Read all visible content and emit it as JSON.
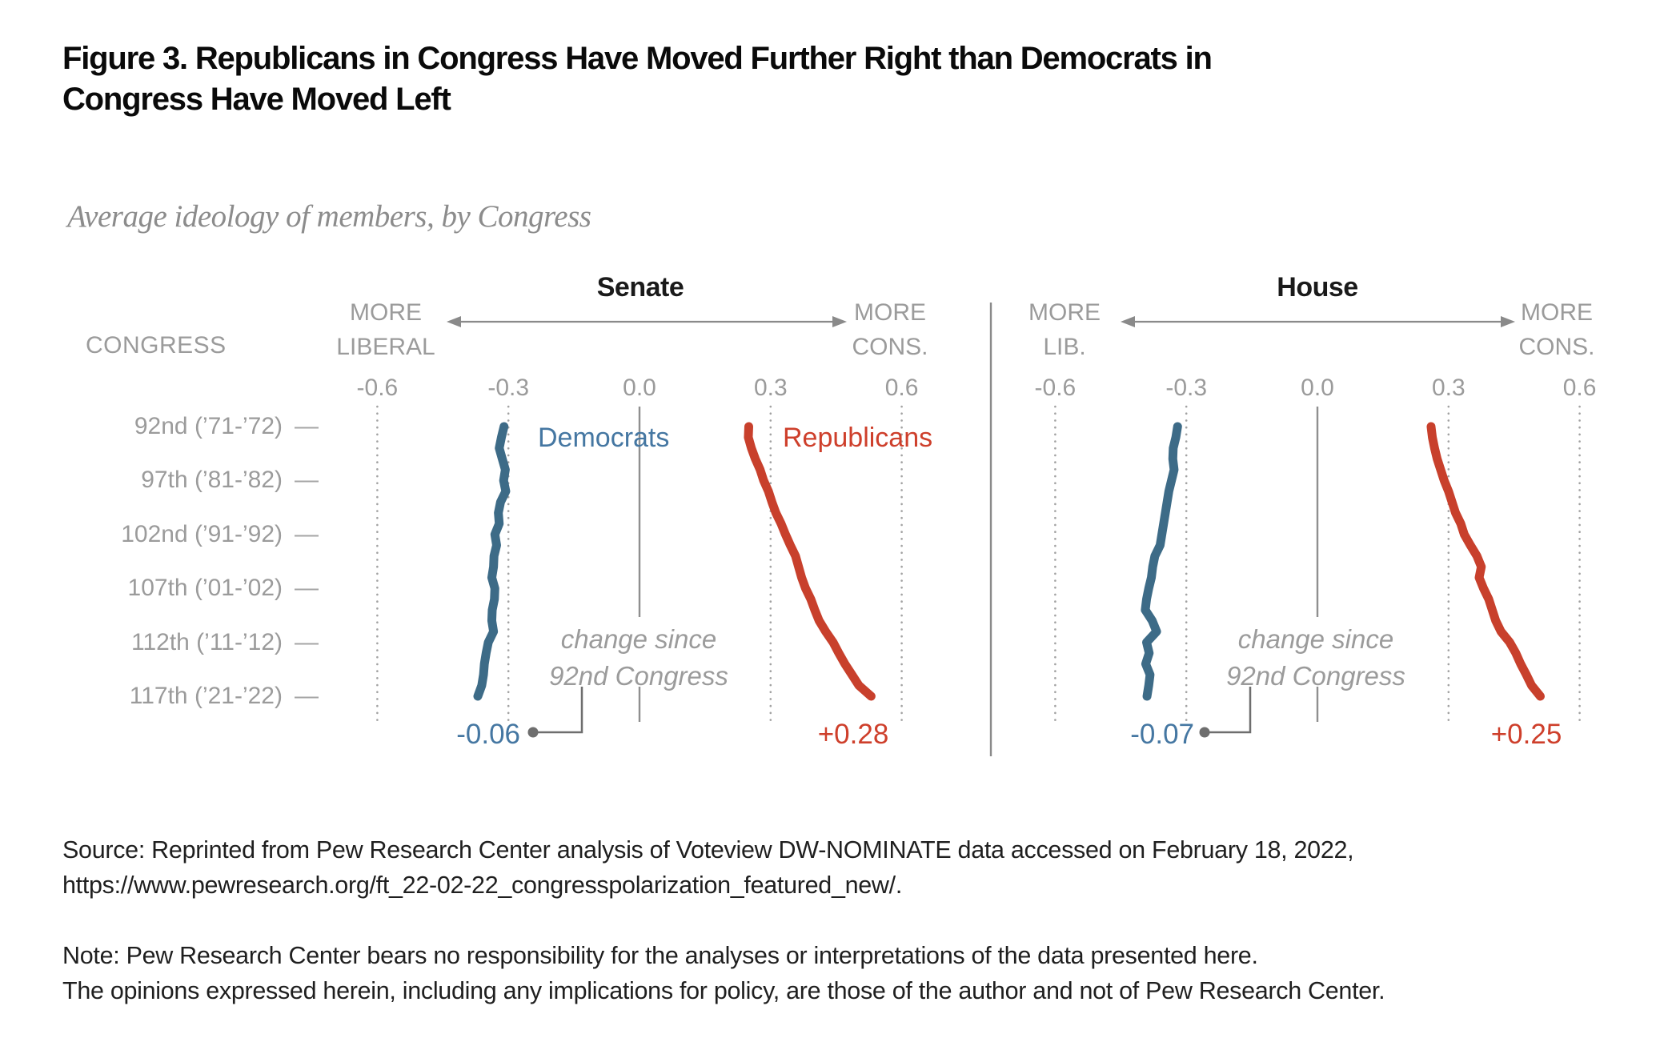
{
  "figure": {
    "title": "Figure 3. Republicans in Congress Have Moved Further Right than Democrats in Congress Have Moved Left",
    "subtitle": "Average ideology of members, by Congress"
  },
  "category_axis": {
    "header": "CONGRESS",
    "ticks": [
      {
        "congress": 92,
        "label": "92nd (’71-’72)"
      },
      {
        "congress": 97,
        "label": "97th (’81-’82)"
      },
      {
        "congress": 102,
        "label": "102nd (’91-’92)"
      },
      {
        "congress": 107,
        "label": "107th (’01-’02)"
      },
      {
        "congress": 112,
        "label": "112th (’11-’12)"
      },
      {
        "congress": 117,
        "label": "117th (’21-’22)"
      }
    ]
  },
  "chart_data": [
    {
      "type": "line",
      "title": "Senate",
      "orientation": "value-on-x-congress-on-y",
      "value_axis": {
        "range": [
          -0.6,
          0.6
        ],
        "ticks": [
          "-0.6",
          "-0.3",
          "0.0",
          "0.3",
          "0.6"
        ],
        "left_label_lines": [
          "MORE",
          "LIBERAL"
        ],
        "right_label_lines": [
          "MORE",
          "CONS."
        ]
      },
      "categories": [
        92,
        93,
        94,
        95,
        96,
        97,
        98,
        99,
        100,
        101,
        102,
        103,
        104,
        105,
        106,
        107,
        108,
        109,
        110,
        111,
        112,
        113,
        114,
        115,
        116,
        117
      ],
      "series": [
        {
          "name": "Democrats",
          "color": "#3D6B87",
          "values": [
            -0.31,
            -0.316,
            -0.321,
            -0.314,
            -0.307,
            -0.311,
            -0.306,
            -0.318,
            -0.323,
            -0.321,
            -0.331,
            -0.327,
            -0.333,
            -0.334,
            -0.338,
            -0.331,
            -0.332,
            -0.337,
            -0.338,
            -0.334,
            -0.346,
            -0.351,
            -0.355,
            -0.357,
            -0.361,
            -0.37
          ]
        },
        {
          "name": "Republicans",
          "color": "#C8402C",
          "values": [
            0.25,
            0.249,
            0.256,
            0.265,
            0.276,
            0.284,
            0.295,
            0.303,
            0.312,
            0.324,
            0.334,
            0.345,
            0.357,
            0.364,
            0.371,
            0.38,
            0.392,
            0.401,
            0.411,
            0.426,
            0.443,
            0.456,
            0.47,
            0.486,
            0.502,
            0.53
          ]
        }
      ],
      "annotations": {
        "change_note_lines": [
          "change since",
          "92nd Congress"
        ],
        "democrat_change": "-0.06",
        "republican_change": "+0.28"
      }
    },
    {
      "type": "line",
      "title": "House",
      "orientation": "value-on-x-congress-on-y",
      "value_axis": {
        "range": [
          -0.6,
          0.6
        ],
        "ticks": [
          "-0.6",
          "-0.3",
          "0.0",
          "0.3",
          "0.6"
        ],
        "left_label_lines": [
          "MORE",
          "LIB."
        ],
        "right_label_lines": [
          "MORE",
          "CONS."
        ]
      },
      "categories": [
        92,
        93,
        94,
        95,
        96,
        97,
        98,
        99,
        100,
        101,
        102,
        103,
        104,
        105,
        106,
        107,
        108,
        109,
        110,
        111,
        112,
        113,
        114,
        115,
        116,
        117
      ],
      "series": [
        {
          "name": "Democrats",
          "color": "#3D6B87",
          "values": [
            -0.32,
            -0.324,
            -0.33,
            -0.331,
            -0.328,
            -0.334,
            -0.34,
            -0.344,
            -0.348,
            -0.352,
            -0.356,
            -0.36,
            -0.372,
            -0.377,
            -0.38,
            -0.386,
            -0.391,
            -0.394,
            -0.378,
            -0.368,
            -0.391,
            -0.385,
            -0.393,
            -0.383,
            -0.386,
            -0.39
          ]
        },
        {
          "name": "Republicans",
          "color": "#C8402C",
          "values": [
            0.26,
            0.263,
            0.268,
            0.274,
            0.282,
            0.29,
            0.3,
            0.308,
            0.316,
            0.328,
            0.336,
            0.35,
            0.365,
            0.375,
            0.37,
            0.38,
            0.392,
            0.4,
            0.408,
            0.42,
            0.44,
            0.454,
            0.465,
            0.478,
            0.49,
            0.51
          ]
        }
      ],
      "annotations": {
        "change_note_lines": [
          "change since",
          "92nd Congress"
        ],
        "democrat_change": "-0.07",
        "republican_change": "+0.25"
      }
    }
  ],
  "footer": {
    "source_lines": [
      "Source: Reprinted from Pew Research Center analysis of Voteview DW-NOMINATE data accessed on February 18, 2022,",
      "https://www.pewresearch.org/ft_22-02-22_congresspolarization_featured_new/."
    ],
    "note_lines": [
      "Note: Pew Research Center bears no responsibility for the analyses or interpretations of the data presented here.",
      "The opinions expressed herein, including any implications for policy, are those of the author and not of Pew Research Center."
    ]
  }
}
